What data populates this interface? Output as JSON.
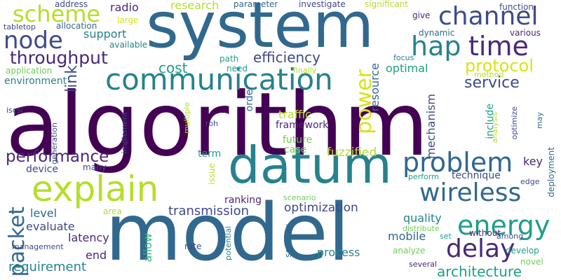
{
  "background": "#ffffff",
  "words": [
    "algorithm",
    "model",
    "system",
    "datum",
    "explain",
    "communication",
    "channel",
    "scheme",
    "node",
    "hap",
    "time",
    "energy",
    "wireless",
    "problem",
    "delay",
    "power",
    "protocol",
    "throughput",
    "packet",
    "performance",
    "efficiency",
    "cost",
    "service",
    "link",
    "architecture",
    "optimization",
    "requirement",
    "transmission",
    "fuzzified",
    "optimal",
    "radio",
    "research",
    "support",
    "resource",
    "mechanism",
    "traffic",
    "process",
    "mobile",
    "end",
    "latency",
    "evaluate",
    "level",
    "quality",
    "key",
    "technique",
    "environment",
    "device",
    "framework",
    "order",
    "term",
    "include",
    "future",
    "case",
    "issue",
    "ranking",
    "develop",
    "deployment",
    "analyze",
    "novel",
    "rate",
    "allow",
    "security",
    "potential",
    "management",
    "distribute",
    "several",
    "without",
    "among",
    "edge",
    "perform",
    "scenario",
    "area",
    "many",
    "set",
    "analysis",
    "optimize",
    "may",
    "method",
    "focus",
    "need",
    "finally",
    "path",
    "application",
    "dynamic",
    "various",
    "give",
    "function",
    "significant",
    "investigate",
    "parameter",
    "address",
    "large",
    "available",
    "allocation",
    "tabletop",
    "iscsi",
    "roh",
    "generation",
    "implement",
    "multiple"
  ]
}
